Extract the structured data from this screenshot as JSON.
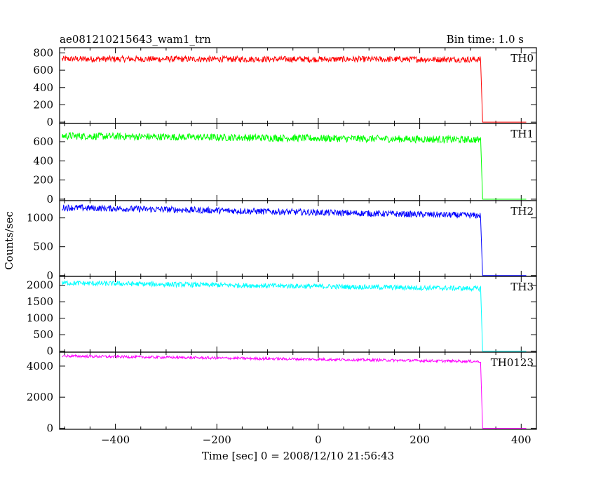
{
  "header": {
    "title": "ae081210215643_wam1_trn",
    "bin_time": "Bin time: 1.0 s"
  },
  "chart_data": {
    "type": "line",
    "xlabel": "Time [sec] 0 = 2008/12/10 21:56:43",
    "ylabel": "Counts/sec",
    "xlim": [
      -510,
      430
    ],
    "x_ticks": [
      -400,
      -200,
      0,
      200,
      400
    ],
    "grid": false,
    "series": [
      {
        "name": "TH0",
        "color": "#ff0000",
        "ylim": [
          -15,
          860
        ],
        "y_ticks": [
          0,
          200,
          400,
          600,
          800
        ],
        "start": 730,
        "end": 725,
        "noise": 70,
        "drop_x": 320,
        "after": 0,
        "x_start": -505,
        "x_end": 410
      },
      {
        "name": "TH1",
        "color": "#00ff00",
        "ylim": [
          -15,
          790
        ],
        "y_ticks": [
          0,
          200,
          400,
          600
        ],
        "start": 660,
        "end": 620,
        "noise": 75,
        "drop_x": 320,
        "after": 0,
        "x_start": -505,
        "x_end": 410
      },
      {
        "name": "TH2",
        "color": "#0000ff",
        "ylim": [
          -15,
          1300
        ],
        "y_ticks": [
          0,
          500,
          1000
        ],
        "start": 1180,
        "end": 1040,
        "noise": 110,
        "drop_x": 320,
        "after": 0,
        "x_start": -505,
        "x_end": 410
      },
      {
        "name": "TH3",
        "color": "#00ffff",
        "ylim": [
          -30,
          2270
        ],
        "y_ticks": [
          0,
          500,
          1000,
          1500,
          2000
        ],
        "start": 2070,
        "end": 1900,
        "noise": 150,
        "drop_x": 320,
        "after": 0,
        "x_start": -505,
        "x_end": 410
      },
      {
        "name": "TH0123",
        "color": "#ff00ff",
        "ylim": [
          -70,
          4900
        ],
        "y_ticks": [
          0,
          2000,
          4000
        ],
        "start": 4650,
        "end": 4300,
        "noise": 170,
        "drop_x": 320,
        "after": 0,
        "x_start": -505,
        "x_end": 410
      }
    ]
  }
}
